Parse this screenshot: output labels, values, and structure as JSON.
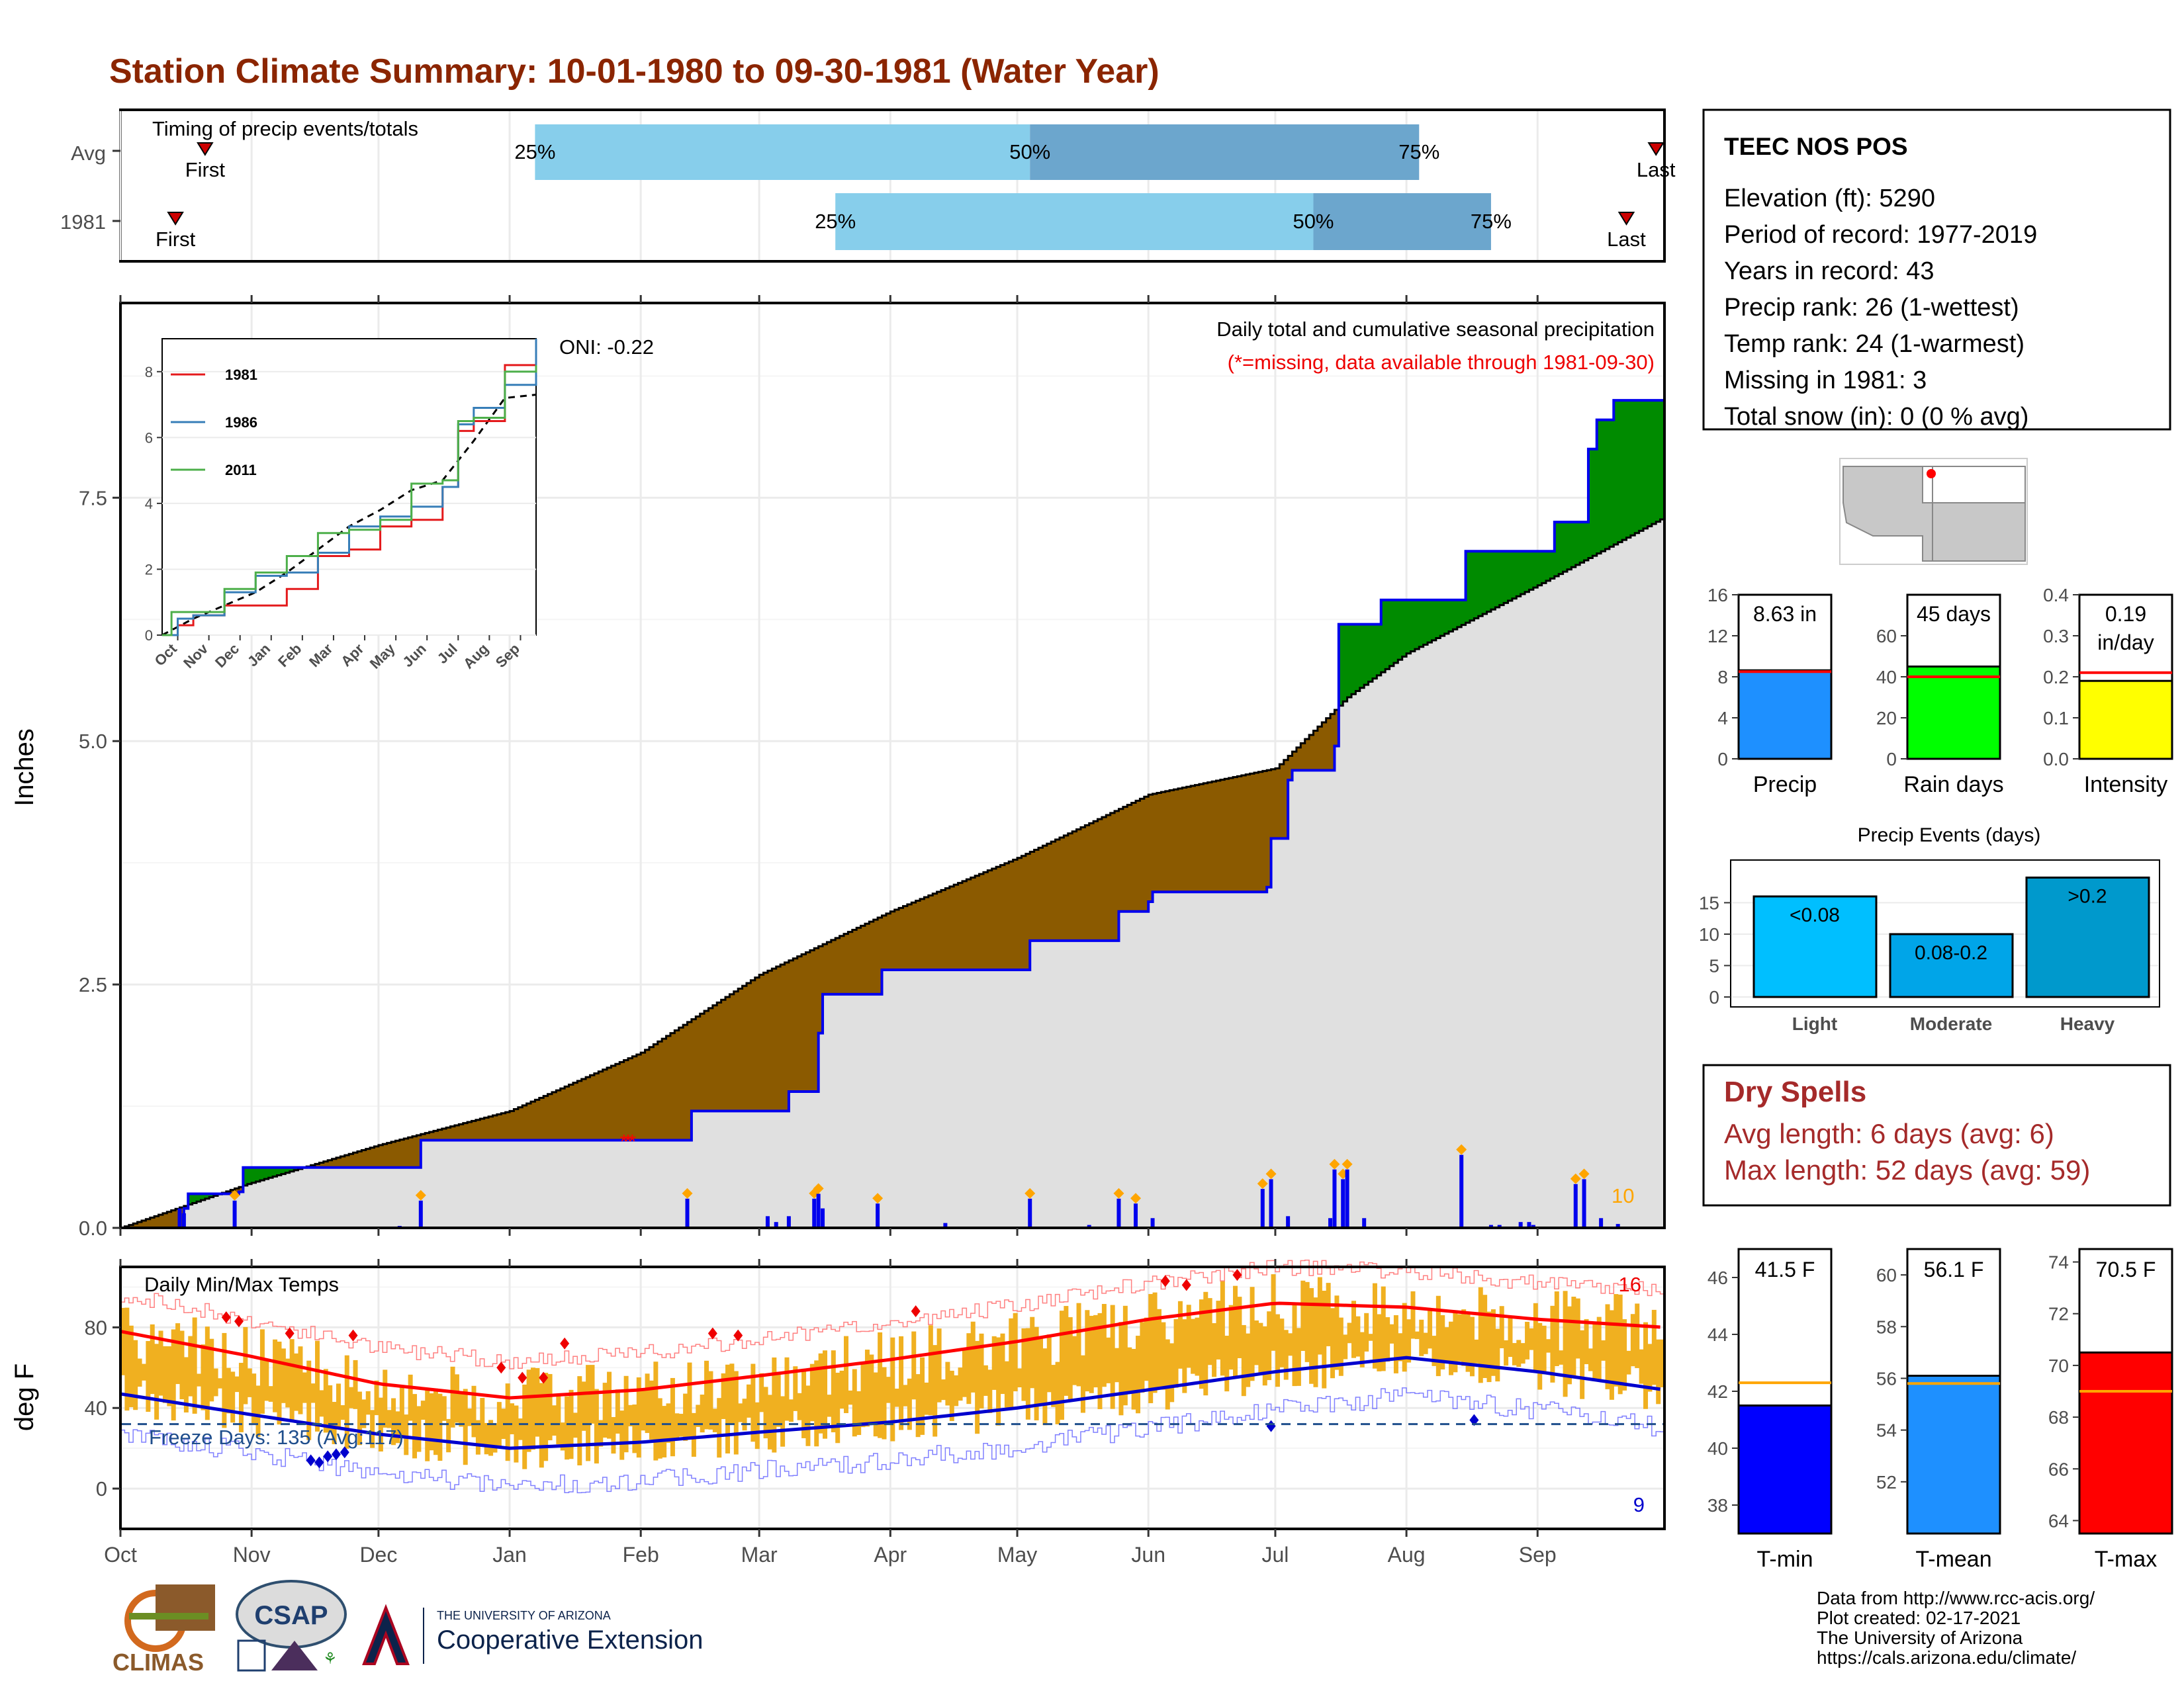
{
  "title": "Station Climate Summary: 10-01-1980 to 09-30-1981 (Water Year)",
  "colors": {
    "title": "#8b2500",
    "deficit": "#8b5a00",
    "surplus": "#008b00",
    "avg_fill": "#e0e0e0",
    "precip_line": "#0000ee",
    "timing_light": "#87ceeb",
    "timing_dark": "#6ca6cd",
    "tmax_bar": "#f0b020",
    "tmax_line": "#ff0000",
    "tmin_line": "#0000cd",
    "dry_spells": "#a52a2a"
  },
  "timing": {
    "title": "Timing of precip events/totals",
    "rows": [
      {
        "label": "Avg",
        "first_label": "First",
        "last_label": "Last",
        "first_day": 20,
        "p25_day": 98,
        "p50_day": 215,
        "p75_day": 307,
        "last_day": 363,
        "p25_label": "25%",
        "p50_label": "50%",
        "p75_label": "75%"
      },
      {
        "label": "1981",
        "first_label": "First",
        "last_label": "Last",
        "first_day": 13,
        "p25_day": 169,
        "p50_day": 282,
        "p75_day": 324,
        "last_day": 356,
        "p25_label": "25%",
        "p50_label": "50%",
        "p75_label": "75%"
      }
    ]
  },
  "precip_panel": {
    "ylabel": "Inches",
    "yticks": [
      "0.0",
      "2.5",
      "5.0",
      "7.5"
    ],
    "oni": "ONI: -0.22",
    "label1": "Daily total and cumulative seasonal precipitation",
    "label2": "(*=missing, data available through 1981-09-30)",
    "max_daily_count": "10",
    "chart_data": {
      "type": "area",
      "x_unit": "day of water year (Oct 1 = 0)",
      "ylim": [
        0,
        9.5
      ],
      "avg_cumulative": [
        [
          0,
          0
        ],
        [
          30,
          0.45
        ],
        [
          61,
          0.85
        ],
        [
          92,
          1.2
        ],
        [
          123,
          1.8
        ],
        [
          151,
          2.6
        ],
        [
          182,
          3.25
        ],
        [
          212,
          3.8
        ],
        [
          243,
          4.45
        ],
        [
          273,
          4.72
        ],
        [
          290,
          5.45
        ],
        [
          304,
          5.9
        ],
        [
          335,
          6.6
        ],
        [
          365,
          7.3
        ]
      ],
      "observed_cumulative": [
        [
          0,
          0
        ],
        [
          13,
          0
        ],
        [
          15,
          0.2
        ],
        [
          16,
          0.35
        ],
        [
          28,
          0.37
        ],
        [
          29,
          0.62
        ],
        [
          70,
          0.62
        ],
        [
          71,
          0.9
        ],
        [
          134,
          0.9
        ],
        [
          135,
          1.2
        ],
        [
          157,
          1.2
        ],
        [
          158,
          1.4
        ],
        [
          165,
          2.0
        ],
        [
          166,
          2.4
        ],
        [
          179,
          2.4
        ],
        [
          180,
          2.65
        ],
        [
          214,
          2.65
        ],
        [
          215,
          2.95
        ],
        [
          235,
          2.95
        ],
        [
          236,
          3.25
        ],
        [
          243,
          3.35
        ],
        [
          244,
          3.45
        ],
        [
          271,
          3.5
        ],
        [
          272,
          4.0
        ],
        [
          276,
          4.6
        ],
        [
          277,
          4.7
        ],
        [
          287,
          4.95
        ],
        [
          288,
          6.2
        ],
        [
          297,
          6.2
        ],
        [
          298,
          6.45
        ],
        [
          317,
          6.45
        ],
        [
          318,
          6.95
        ],
        [
          338,
          6.95
        ],
        [
          339,
          7.25
        ],
        [
          346,
          7.25
        ],
        [
          347,
          8.0
        ],
        [
          349,
          8.3
        ],
        [
          353,
          8.5
        ],
        [
          365,
          8.63
        ]
      ],
      "daily_bars": [
        [
          14,
          0.2
        ],
        [
          15,
          0.15
        ],
        [
          27,
          0.28
        ],
        [
          66,
          0.02
        ],
        [
          71,
          0.28
        ],
        [
          134,
          0.3
        ],
        [
          153,
          0.12
        ],
        [
          155,
          0.06
        ],
        [
          158,
          0.12
        ],
        [
          164,
          0.3
        ],
        [
          165,
          0.35
        ],
        [
          166,
          0.2
        ],
        [
          179,
          0.25
        ],
        [
          195,
          0.05
        ],
        [
          215,
          0.3
        ],
        [
          229,
          0.03
        ],
        [
          236,
          0.3
        ],
        [
          240,
          0.25
        ],
        [
          244,
          0.1
        ],
        [
          270,
          0.4
        ],
        [
          272,
          0.5
        ],
        [
          276,
          0.12
        ],
        [
          286,
          0.1
        ],
        [
          287,
          0.6
        ],
        [
          289,
          0.5
        ],
        [
          290,
          0.6
        ],
        [
          294,
          0.1
        ],
        [
          317,
          0.75
        ],
        [
          324,
          0.03
        ],
        [
          326,
          0.03
        ],
        [
          331,
          0.06
        ],
        [
          333,
          0.06
        ],
        [
          334,
          0.03
        ],
        [
          344,
          0.45
        ],
        [
          346,
          0.5
        ],
        [
          350,
          0.1
        ],
        [
          354,
          0.04
        ]
      ],
      "missing_markers": [
        119,
        120,
        121
      ]
    }
  },
  "inset": {
    "series_names": [
      "1981",
      "1986",
      "2011"
    ],
    "series_colors": [
      "#e41a1c",
      "#377eb8",
      "#4daf4a"
    ],
    "yticks": [
      "0",
      "2",
      "4",
      "6",
      "8"
    ],
    "xticks": [
      "Oct",
      "Nov",
      "Dec",
      "Jan",
      "Feb",
      "Mar",
      "Apr",
      "May",
      "Jun",
      "Jul",
      "Aug",
      "Sep"
    ],
    "chart_data": {
      "type": "line",
      "x_unit": "month index",
      "ylim": [
        0,
        9
      ],
      "series": [
        {
          "name": "1981",
          "values": [
            [
              0,
              0
            ],
            [
              0.5,
              0.3
            ],
            [
              1,
              0.6
            ],
            [
              2,
              0.9
            ],
            [
              3,
              0.9
            ],
            [
              4,
              1.4
            ],
            [
              5,
              2.4
            ],
            [
              6,
              2.6
            ],
            [
              7,
              3.3
            ],
            [
              8,
              3.5
            ],
            [
              9,
              4.5
            ],
            [
              9.5,
              6.2
            ],
            [
              10,
              6.5
            ],
            [
              11,
              8.2
            ],
            [
              12,
              8.63
            ]
          ]
        },
        {
          "name": "1986",
          "values": [
            [
              0,
              0
            ],
            [
              0.5,
              0.5
            ],
            [
              1,
              0.6
            ],
            [
              2,
              1.3
            ],
            [
              3,
              1.8
            ],
            [
              4,
              1.9
            ],
            [
              5,
              2.5
            ],
            [
              6,
              3.3
            ],
            [
              7,
              3.6
            ],
            [
              8,
              3.9
            ],
            [
              9,
              4.5
            ],
            [
              9.5,
              6.4
            ],
            [
              10,
              6.9
            ],
            [
              11,
              7.6
            ],
            [
              12,
              9.0
            ]
          ]
        },
        {
          "name": "2011",
          "values": [
            [
              0,
              0
            ],
            [
              0.3,
              0.7
            ],
            [
              1,
              0.7
            ],
            [
              2,
              1.4
            ],
            [
              3,
              1.9
            ],
            [
              4,
              2.4
            ],
            [
              5,
              3.1
            ],
            [
              6,
              3.2
            ],
            [
              7,
              3.5
            ],
            [
              8,
              4.6
            ],
            [
              9,
              4.7
            ],
            [
              9.5,
              6.5
            ],
            [
              10,
              6.6
            ],
            [
              11,
              8.0
            ],
            [
              12,
              8.2
            ]
          ]
        }
      ],
      "average": [
        [
          0,
          0
        ],
        [
          1,
          0.5
        ],
        [
          2,
          0.9
        ],
        [
          3,
          1.3
        ],
        [
          4,
          1.9
        ],
        [
          5,
          2.6
        ],
        [
          6,
          3.3
        ],
        [
          7,
          3.8
        ],
        [
          8,
          4.4
        ],
        [
          9,
          4.7
        ],
        [
          10,
          5.9
        ],
        [
          11,
          7.2
        ],
        [
          12,
          7.3
        ]
      ]
    }
  },
  "temp_panel": {
    "ylabel": "deg F",
    "title": "Daily Min/Max Temps",
    "freeze": "Freeze Days: 135 (Avg:117)",
    "count_high": "16",
    "count_low": "9",
    "yticks": [
      "0",
      "40",
      "80"
    ],
    "chart_data": {
      "type": "line",
      "x_unit": "day of water year",
      "ylim": [
        -20,
        110
      ],
      "avg_tmax": [
        [
          0,
          78
        ],
        [
          30,
          66
        ],
        [
          61,
          52
        ],
        [
          92,
          45
        ],
        [
          123,
          49
        ],
        [
          151,
          56
        ],
        [
          182,
          64
        ],
        [
          212,
          73
        ],
        [
          243,
          84
        ],
        [
          273,
          92
        ],
        [
          304,
          90
        ],
        [
          335,
          84
        ],
        [
          365,
          80
        ]
      ],
      "avg_tmin": [
        [
          0,
          47
        ],
        [
          30,
          37
        ],
        [
          61,
          27
        ],
        [
          92,
          20
        ],
        [
          123,
          23
        ],
        [
          151,
          28
        ],
        [
          182,
          33
        ],
        [
          212,
          40
        ],
        [
          243,
          49
        ],
        [
          273,
          58
        ],
        [
          304,
          65
        ],
        [
          335,
          58
        ],
        [
          365,
          49
        ]
      ],
      "freeze_line": 32
    }
  },
  "xaxis_months": [
    "Oct",
    "Nov",
    "Dec",
    "Jan",
    "Feb",
    "Mar",
    "Apr",
    "May",
    "Jun",
    "Jul",
    "Aug",
    "Sep"
  ],
  "station": {
    "name": "TEEC NOS POS",
    "lines": [
      "Elevation (ft): 5290",
      "Period of record: 1977-2019",
      "Years in record: 43",
      "Precip rank: 26 (1-wettest)",
      "Temp rank: 24 (1-warmest)",
      "Missing in 1981: 3",
      "Total snow (in): 0 (0 % avg)"
    ]
  },
  "summary_bars": [
    {
      "label": "Precip",
      "value_text": "8.63 in",
      "value": 8.63,
      "avg": 8.5,
      "ymax": 16,
      "yticks": [
        "0",
        "4",
        "8",
        "12",
        "16"
      ],
      "color": "#1e90ff"
    },
    {
      "label": "Rain days",
      "value_text": "45 days",
      "value": 45,
      "avg": 40,
      "ymax": 80,
      "yticks": [
        "0",
        "20",
        "40",
        "60"
      ],
      "color": "#00ff00"
    },
    {
      "label": "Intensity",
      "value_text": "0.19 in/day",
      "value": 0.19,
      "avg": 0.21,
      "ymax": 0.4,
      "yticks": [
        "0.0",
        "0.1",
        "0.2",
        "0.3",
        "0.4"
      ],
      "color": "#ffff00"
    }
  ],
  "precip_events": {
    "title": "Precip Events (days)",
    "yticks": [
      "0",
      "5",
      "10",
      "15"
    ],
    "chart_data": {
      "type": "bar",
      "categories": [
        "Light",
        "Moderate",
        "Heavy"
      ],
      "bar_labels": [
        "<0.08",
        "0.08-0.2",
        ">0.2"
      ],
      "values": [
        16,
        10,
        19
      ],
      "colors": [
        "#00bfff",
        "#00a5e8",
        "#0099cc"
      ]
    }
  },
  "dry_spells": {
    "title": "Dry Spells",
    "avg_line": "Avg length: 6 days (avg: 6)",
    "max_line": "Max length: 52 days (avg: 59)"
  },
  "temp_bars": [
    {
      "label": "T-min",
      "value_text": "41.5 F",
      "value": 41.5,
      "avg": 42.3,
      "ymin": 37,
      "ymax": 47,
      "ticks": [
        38,
        40,
        42,
        44,
        46
      ],
      "color": "#0000ff"
    },
    {
      "label": "T-mean",
      "value_text": "56.1 F",
      "value": 56.1,
      "avg": 55.8,
      "ymin": 50,
      "ymax": 61,
      "ticks": [
        52,
        54,
        56,
        58,
        60
      ],
      "color": "#1e90ff"
    },
    {
      "label": "T-max",
      "value_text": "70.5 F",
      "value": 70.5,
      "avg": 69.0,
      "ymin": 63.5,
      "ymax": 74.5,
      "ticks": [
        64,
        66,
        68,
        70,
        72,
        74
      ],
      "color": "#ff0000"
    }
  ],
  "footer": {
    "lines": [
      "Data from http://www.rcc-acis.org/",
      "Plot created: 02-17-2021",
      "The University of Arizona",
      "https://cals.arizona.edu/climate/"
    ],
    "logo_climas": "CLIMAS",
    "logo_csap": "CSAP",
    "logo_ua_small": "THE UNIVERSITY OF ARIZONA",
    "logo_ua_main": "Cooperative Extension"
  }
}
